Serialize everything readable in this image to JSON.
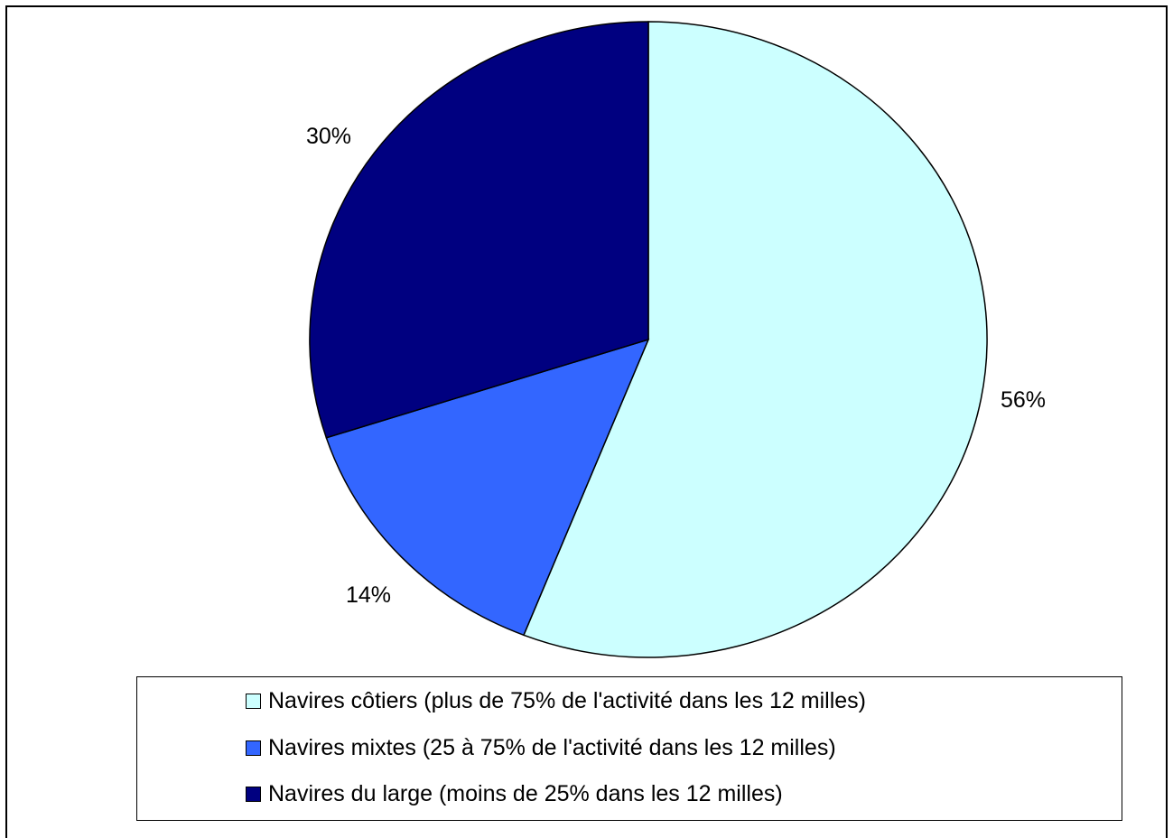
{
  "chart_data": {
    "type": "pie",
    "title": "",
    "start_angle_deg": 0,
    "direction": "clockwise",
    "slices": [
      {
        "name": "Navires côtiers (plus de 75% de l'activité dans les 12 milles)",
        "value": 56,
        "label": "56%",
        "color": "#ccffff"
      },
      {
        "name": "Navires mixtes (25 à 75% de l'activité dans les 12 milles)",
        "value": 14,
        "label": "14%",
        "color": "#3366ff"
      },
      {
        "name": "Navires du large (moins de 25% dans les 12 milles)",
        "value": 30,
        "label": "30%",
        "color": "#000080"
      }
    ],
    "legend_position": "bottom",
    "legend": [
      "Navires côtiers (plus de 75% de l'activité dans les 12 milles)",
      "Navires mixtes (25 à 75% de l'activité dans les 12 milles)",
      "Navires du large (moins de 25% dans les 12 milles)"
    ]
  }
}
